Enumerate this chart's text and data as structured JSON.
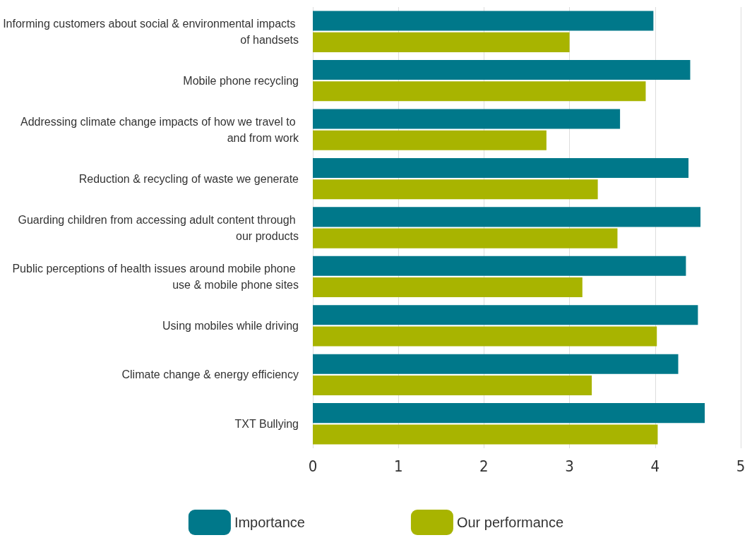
{
  "chart_data": {
    "type": "bar",
    "orientation": "horizontal",
    "categories": [
      "Informing customers about social & environmental impacts of handsets",
      "Mobile phone recycling",
      "Addressing climate change impacts of how we travel to and from work",
      "Reduction & recycling of waste we generate",
      "Guarding children from accessing adult content through our products",
      "Public perceptions of health issues around mobile phone use & mobile phone sites",
      "Using mobiles while driving",
      "Climate change & energy efficiency",
      "TXT Bullying"
    ],
    "series": [
      {
        "name": "Importance",
        "color": "#00788a",
        "values": [
          3.98,
          4.41,
          3.59,
          4.39,
          4.53,
          4.36,
          4.5,
          4.27,
          4.58
        ]
      },
      {
        "name": "Our performance",
        "color": "#a8b400",
        "values": [
          3.0,
          3.89,
          2.73,
          3.33,
          3.56,
          3.15,
          4.02,
          3.26,
          4.03
        ]
      }
    ],
    "xlim": [
      0,
      5
    ],
    "xticks": [
      0,
      1,
      2,
      3,
      4,
      5
    ],
    "grid": "x",
    "legend": "bottom"
  }
}
